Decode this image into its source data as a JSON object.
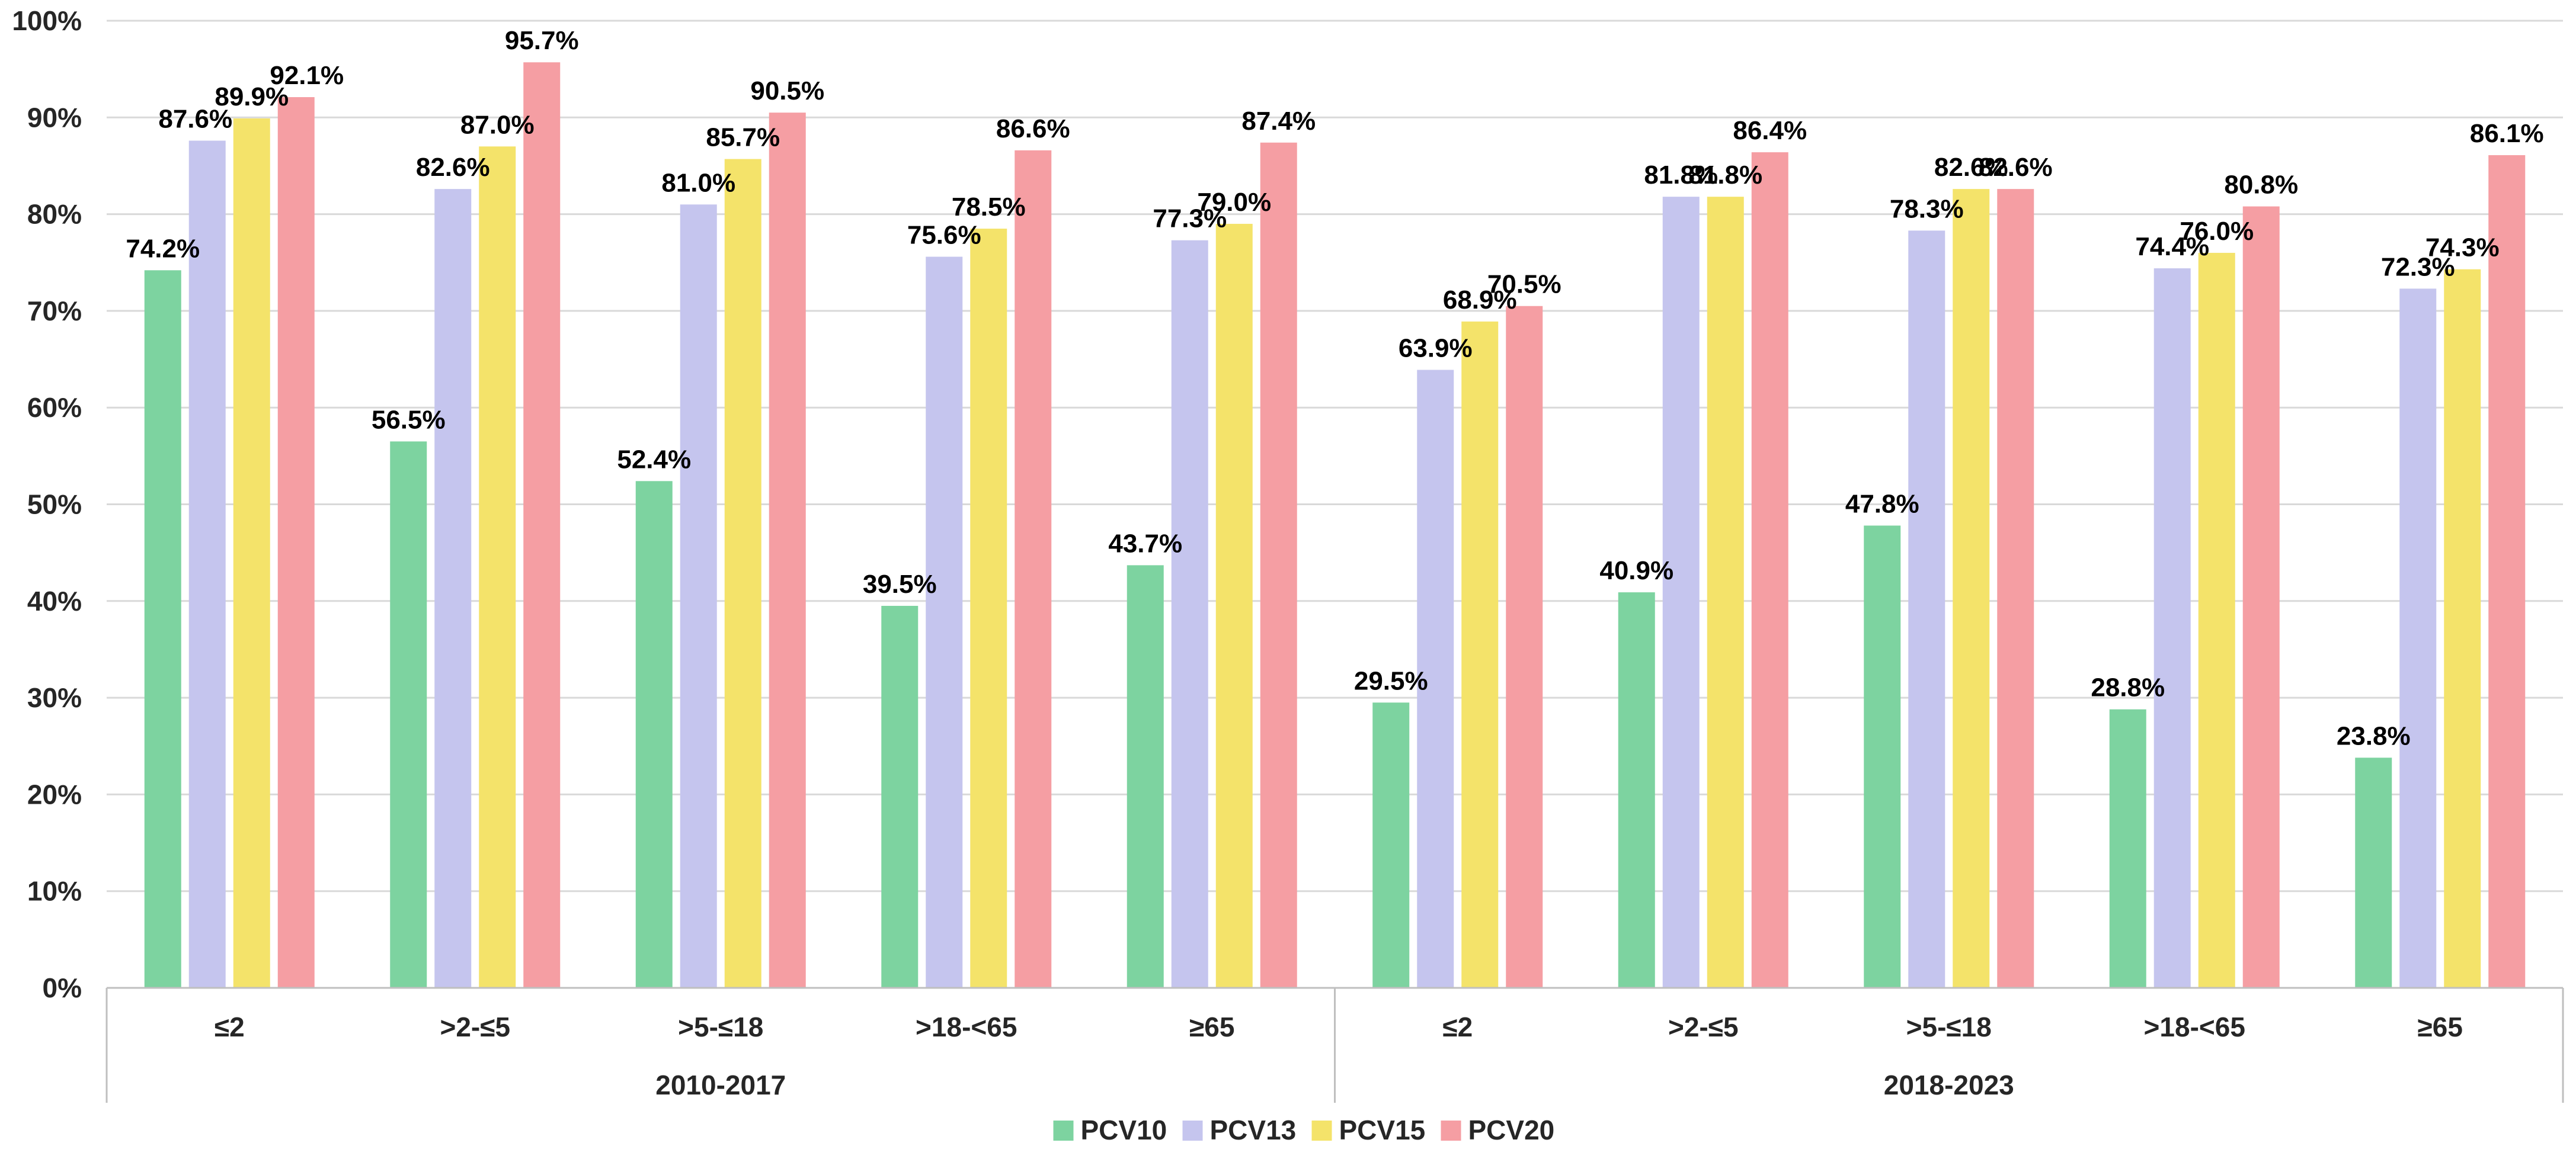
{
  "chart_data": {
    "type": "bar",
    "title": "",
    "xlabel": "",
    "ylabel": "",
    "ylim": [
      0,
      100
    ],
    "yticks": [
      "0%",
      "10%",
      "20%",
      "30%",
      "40%",
      "50%",
      "60%",
      "70%",
      "80%",
      "90%",
      "100%"
    ],
    "value_suffix": "%",
    "groups": [
      {
        "name": "2010-2017",
        "categories": [
          "≤2",
          ">2-≤5",
          ">5-≤18",
          ">18-<65",
          "≥65"
        ]
      },
      {
        "name": "2018-2023",
        "categories": [
          "≤2",
          ">2-≤5",
          ">5-≤18",
          ">18-<65",
          "≥65"
        ]
      }
    ],
    "series": [
      {
        "name": "PCV10",
        "color": "#7dd3a0",
        "values": [
          74.2,
          56.5,
          52.4,
          39.5,
          43.7,
          29.5,
          40.9,
          47.8,
          28.8,
          23.8
        ]
      },
      {
        "name": "PCV13",
        "color": "#c5c5ee",
        "values": [
          87.6,
          82.6,
          81.0,
          75.6,
          77.3,
          63.9,
          81.8,
          78.3,
          74.4,
          72.3
        ]
      },
      {
        "name": "PCV15",
        "color": "#f4e36a",
        "values": [
          89.9,
          87.0,
          85.7,
          78.5,
          79.0,
          68.9,
          81.8,
          82.6,
          76.0,
          74.3
        ]
      },
      {
        "name": "PCV20",
        "color": "#f59ea3",
        "values": [
          92.1,
          95.7,
          90.5,
          86.6,
          87.4,
          70.5,
          86.4,
          82.6,
          80.8,
          86.1
        ]
      }
    ],
    "legend_position": "bottom",
    "grid": true
  }
}
